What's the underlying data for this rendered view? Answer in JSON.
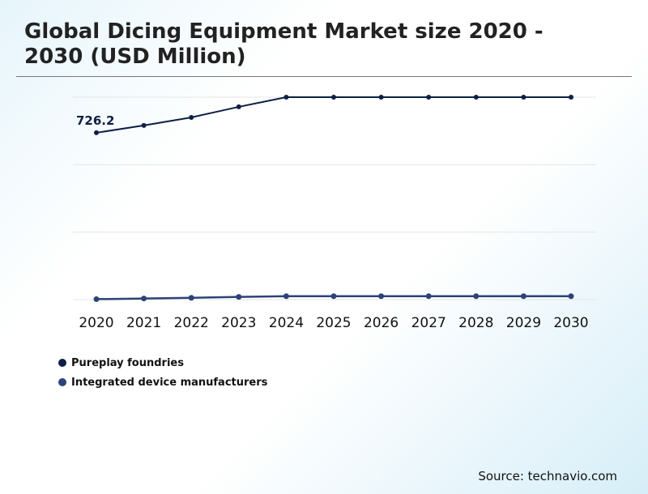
{
  "chart_data": {
    "type": "line",
    "title": "Global Dicing Equipment Market size 2020 - 2030 (USD Million)",
    "categories": [
      "2020",
      "2021",
      "2022",
      "2023",
      "2024",
      "2025",
      "2026",
      "2027",
      "2028",
      "2029",
      "2030"
    ],
    "series": [
      {
        "name": "Pureplay foundries",
        "color": "#0d1f45",
        "values": [
          726.2,
          758,
          793,
          839,
          881,
          881,
          881,
          881,
          881,
          881,
          881
        ]
      },
      {
        "name": "Integrated device manufacturers",
        "color": "#2c4378",
        "values": [
          2,
          5,
          8,
          12,
          15,
          15,
          15,
          15,
          15,
          15,
          15
        ]
      }
    ],
    "data_labels": [
      {
        "series": 0,
        "index": 0,
        "text": "726.2"
      }
    ],
    "ylim": [
      0,
      881
    ],
    "grid": true,
    "legend_placement": "bottom-left"
  },
  "source": "Source: technavio.com"
}
